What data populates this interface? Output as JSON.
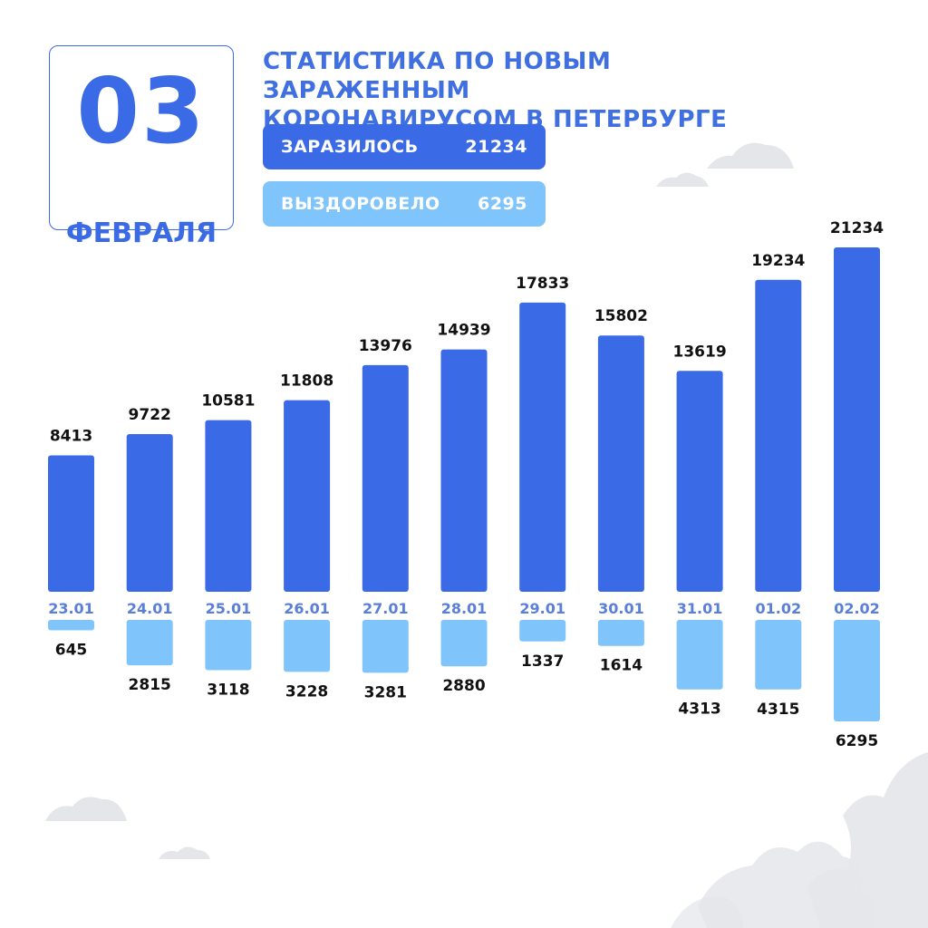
{
  "date": {
    "day": "03",
    "month": "ФЕВРАЛЯ"
  },
  "title": {
    "line1": "СТАТИСТИКА ПО НОВЫМ ЗАРАЖЕННЫМ",
    "line2": "КОРОНАВИРУСОМ В ПЕТЕРБУРГЕ"
  },
  "legend": {
    "infected": {
      "label": "ЗАРАЗИЛОСЬ",
      "value": "21234"
    },
    "recovered": {
      "label": "ВЫЗДОРОВЕЛО",
      "value": "6295"
    }
  },
  "colors": {
    "infected": "#3b6ae6",
    "recovered": "#7fc4fb",
    "date_label": "#5a7fd8",
    "value_text": "#111111",
    "decor": "#e4e6ea"
  },
  "chart_data": {
    "type": "bar",
    "categories": [
      "23.01",
      "24.01",
      "25.01",
      "26.01",
      "27.01",
      "28.01",
      "29.01",
      "30.01",
      "31.01",
      "01.02",
      "02.02"
    ],
    "series": [
      {
        "name": "ЗАРАЗИЛОСЬ",
        "values": [
          8413,
          9722,
          10581,
          11808,
          13976,
          14939,
          17833,
          15802,
          13619,
          19234,
          21234
        ]
      },
      {
        "name": "ВЫЗДОРОВЕЛО",
        "values": [
          645,
          2815,
          3118,
          3228,
          3281,
          2880,
          1337,
          1614,
          4313,
          4315,
          6295
        ]
      }
    ]
  }
}
